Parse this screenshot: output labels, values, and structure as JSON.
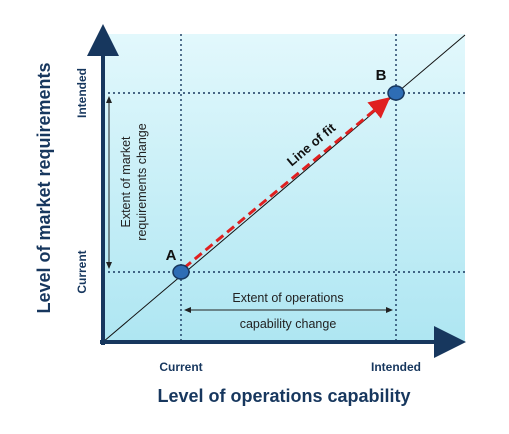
{
  "axes": {
    "y_title": "Level of market requirements",
    "x_title": "Level of operations capability",
    "y_ticks": [
      "Intended",
      "Current"
    ],
    "x_ticks": [
      "Current",
      "Intended"
    ]
  },
  "points": [
    {
      "label": "A"
    },
    {
      "label": "B"
    }
  ],
  "line_label": "Line of fit",
  "annotations": [
    {
      "lines": [
        "Extent of market",
        "requirements change"
      ]
    },
    {
      "lines": [
        "Extent of operations",
        "capability change"
      ]
    }
  ]
}
